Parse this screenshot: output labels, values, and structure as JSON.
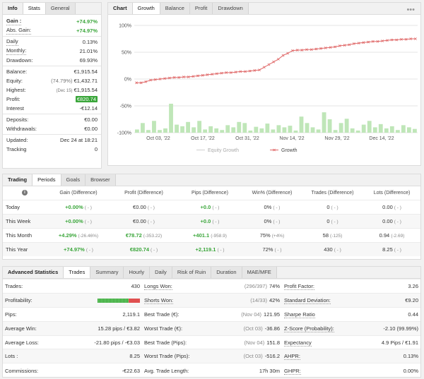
{
  "info": {
    "tabs": [
      "Info",
      "Stats",
      "General"
    ],
    "rows": [
      {
        "label": "Gain :",
        "value": "+74.97%"
      },
      {
        "label": "Abs. Gain:",
        "value": "+74.97%"
      },
      {
        "label": "Daily",
        "value": "0.13%"
      },
      {
        "label": "Monthly:",
        "value": "21.01%"
      },
      {
        "label": "Drawdown:",
        "value": "69.93%"
      },
      {
        "label": "Balance:",
        "value": "€1,915.54"
      },
      {
        "label": "Equity:",
        "note": "(74.79%)",
        "value": "€1,432.71"
      },
      {
        "label": "Highest:",
        "note": "(Dec 15)",
        "value": "€1,915.54"
      },
      {
        "label": "Profit:",
        "value": "€820.74"
      },
      {
        "label": "Interest",
        "value": "-€12.14"
      },
      {
        "label": "Deposits:",
        "value": "€0.00"
      },
      {
        "label": "Withdrawals:",
        "value": "€0.00"
      },
      {
        "label": "Updated:",
        "value": "Dec 24 at 18:21"
      },
      {
        "label": "Tracking",
        "value": "0"
      }
    ]
  },
  "chart_panel": {
    "tabs": [
      "Chart",
      "Growth",
      "Balance",
      "Profit",
      "Drawdown"
    ],
    "menu": "•••"
  },
  "chart_data": {
    "type": "line",
    "y_ticks": [
      "100%",
      "50%",
      "0%",
      "-50%",
      "-100%"
    ],
    "ylim": [
      -100,
      100
    ],
    "x_ticks": [
      "Oct 03, '22",
      "Oct 17, '22",
      "Oct 31, '22",
      "Nov 14, '22",
      "Nov 29, '22",
      "Dec 14, '22"
    ],
    "legend": [
      "Equity Growth",
      "Growth"
    ],
    "series": [
      {
        "name": "Growth",
        "values": [
          -7,
          -7,
          -5,
          -2,
          -1,
          0,
          1,
          2,
          3,
          3,
          4,
          4,
          5,
          6,
          7,
          8,
          9,
          10,
          11,
          12,
          12,
          13,
          14,
          14,
          15,
          16,
          17,
          22,
          27,
          32,
          37,
          44,
          48,
          53,
          54,
          54,
          55,
          55,
          56,
          57,
          58,
          59,
          60,
          62,
          63,
          64,
          66,
          67,
          68,
          69,
          70,
          70,
          71,
          72,
          73,
          73,
          74,
          74,
          75,
          75
        ]
      }
    ],
    "bars": [
      6,
      18,
      5,
      22,
      5,
      8,
      54,
      15,
      12,
      20,
      10,
      22,
      6,
      12,
      8,
      5,
      14,
      10,
      20,
      18,
      4,
      11,
      8,
      17,
      6,
      14,
      10,
      13,
      4,
      30,
      18,
      10,
      6,
      38,
      25,
      5,
      18,
      26,
      8,
      4,
      15,
      22,
      10,
      16,
      8,
      12,
      5,
      14,
      10,
      7
    ]
  },
  "trading": {
    "tabs": [
      "Trading",
      "Periods",
      "Goals",
      "Browser"
    ],
    "headers": [
      "Gain (Difference)",
      "Profit (Difference)",
      "Pips (Difference)",
      "Win% (Difference)",
      "Trades (Difference)",
      "Lots (Difference)"
    ],
    "rows": [
      {
        "period": "Today",
        "gain": "+0.00%",
        "gain_d": "( - )",
        "profit": "€0.00",
        "profit_d": "( - )",
        "pips": "+0.0",
        "pips_d": "( - )",
        "win": "0%",
        "win_d": "( - )",
        "trades": "0",
        "trades_d": "( - )",
        "lots": "0.00",
        "lots_d": "( - )"
      },
      {
        "period": "This Week",
        "gain": "+0.00%",
        "gain_d": "( - )",
        "profit": "€0.00",
        "profit_d": "( - )",
        "pips": "+0.0",
        "pips_d": "( - )",
        "win": "0%",
        "win_d": "( - )",
        "trades": "0",
        "trades_d": "( - )",
        "lots": "0.00",
        "lots_d": "( - )"
      },
      {
        "period": "This Month",
        "gain": "+4.29%",
        "gain_d": "(-26.46%)",
        "profit": "€78.72",
        "profit_d": "(-353.22)",
        "pips": "+401.1",
        "pips_d": "(-958.9)",
        "win": "75%",
        "win_d": "(+4%)",
        "trades": "58",
        "trades_d": "(-125)",
        "lots": "0.94",
        "lots_d": "(-2.69)"
      },
      {
        "period": "This Year",
        "gain": "+74.97%",
        "gain_d": "( - )",
        "profit": "€820.74",
        "profit_d": "( - )",
        "pips": "+2,119.1",
        "pips_d": "( - )",
        "win": "72%",
        "win_d": "( - )",
        "trades": "430",
        "trades_d": "( - )",
        "lots": "8.25",
        "lots_d": "( - )"
      }
    ]
  },
  "advanced": {
    "tabs": [
      "Advanced Statistics",
      "Trades",
      "Summary",
      "Hourly",
      "Daily",
      "Risk of Ruin",
      "Duration",
      "MAE/MFE"
    ],
    "rows": [
      [
        {
          "l": "Trades:",
          "v": "430"
        },
        {
          "l": "Longs Won:",
          "n": "(296/397)",
          "v": "74%"
        },
        {
          "l": "Profit Factor:",
          "v": "3.26"
        }
      ],
      [
        {
          "l": "Profitability:",
          "bar": true
        },
        {
          "l": "Shorts Won:",
          "n": "(14/33)",
          "v": "42%"
        },
        {
          "l": "Standard Deviation:",
          "v": "€9.20"
        }
      ],
      [
        {
          "l": "Pips:",
          "v": "2,119.1"
        },
        {
          "l": "Best Trade (€):",
          "n": "(Nov 04)",
          "v": "121.95"
        },
        {
          "l": "Sharpe Ratio",
          "v": "0.44"
        }
      ],
      [
        {
          "l": "Average Win:",
          "v": "15.28 pips / €3.82"
        },
        {
          "l": "Worst Trade (€):",
          "n": "(Oct 03)",
          "v": "-36.86"
        },
        {
          "l": "Z-Score (Probability):",
          "v": "-2.10 (99.99%)"
        }
      ],
      [
        {
          "l": "Average Loss:",
          "v": "-21.80 pips / -€3.03"
        },
        {
          "l": "Best Trade (Pips):",
          "n": "(Nov 04)",
          "v": "151.8"
        },
        {
          "l": "Expectancy",
          "v": "4.9 Pips / €1.91"
        }
      ],
      [
        {
          "l": "Lots :",
          "v": "8.25"
        },
        {
          "l": "Worst Trade (Pips):",
          "n": "(Oct 03)",
          "v": "-516.2"
        },
        {
          "l": "AHPR:",
          "v": "0.13%"
        }
      ],
      [
        {
          "l": "Commissions:",
          "v": "-€22.63"
        },
        {
          "l": "Avg. Trade Length:",
          "v": "17h 30m"
        },
        {
          "l": "GHPR:",
          "v": "0.00%"
        }
      ]
    ]
  }
}
